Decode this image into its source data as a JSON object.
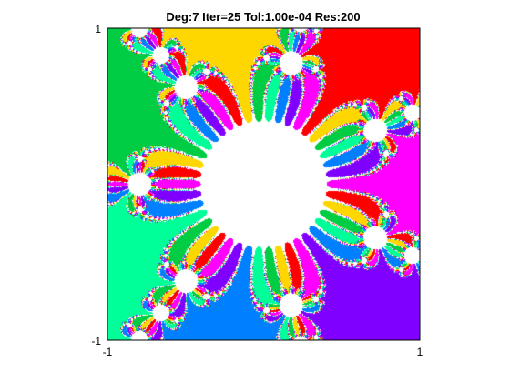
{
  "chart_data": {
    "type": "heatmap",
    "title": "Deg:7 Iter=25 Tol:1.00e-04 Res:200",
    "xlabel": "",
    "ylabel": "",
    "xlim": [
      -1,
      1
    ],
    "ylim": [
      -1,
      1
    ],
    "x_ticks": [
      "-1",
      "1"
    ],
    "y_ticks": [
      "-1",
      "1"
    ],
    "grid": false,
    "degree": 7,
    "iterations": 25,
    "tolerance": 0.0001,
    "resolution": 200,
    "basin_colors": [
      "#ff00ff",
      "#ff0000",
      "#ffd700",
      "#00cc44",
      "#00ff99",
      "#0080ff",
      "#8000ff"
    ],
    "nonconverged_color": "#ffffff",
    "note_values": {}
  }
}
